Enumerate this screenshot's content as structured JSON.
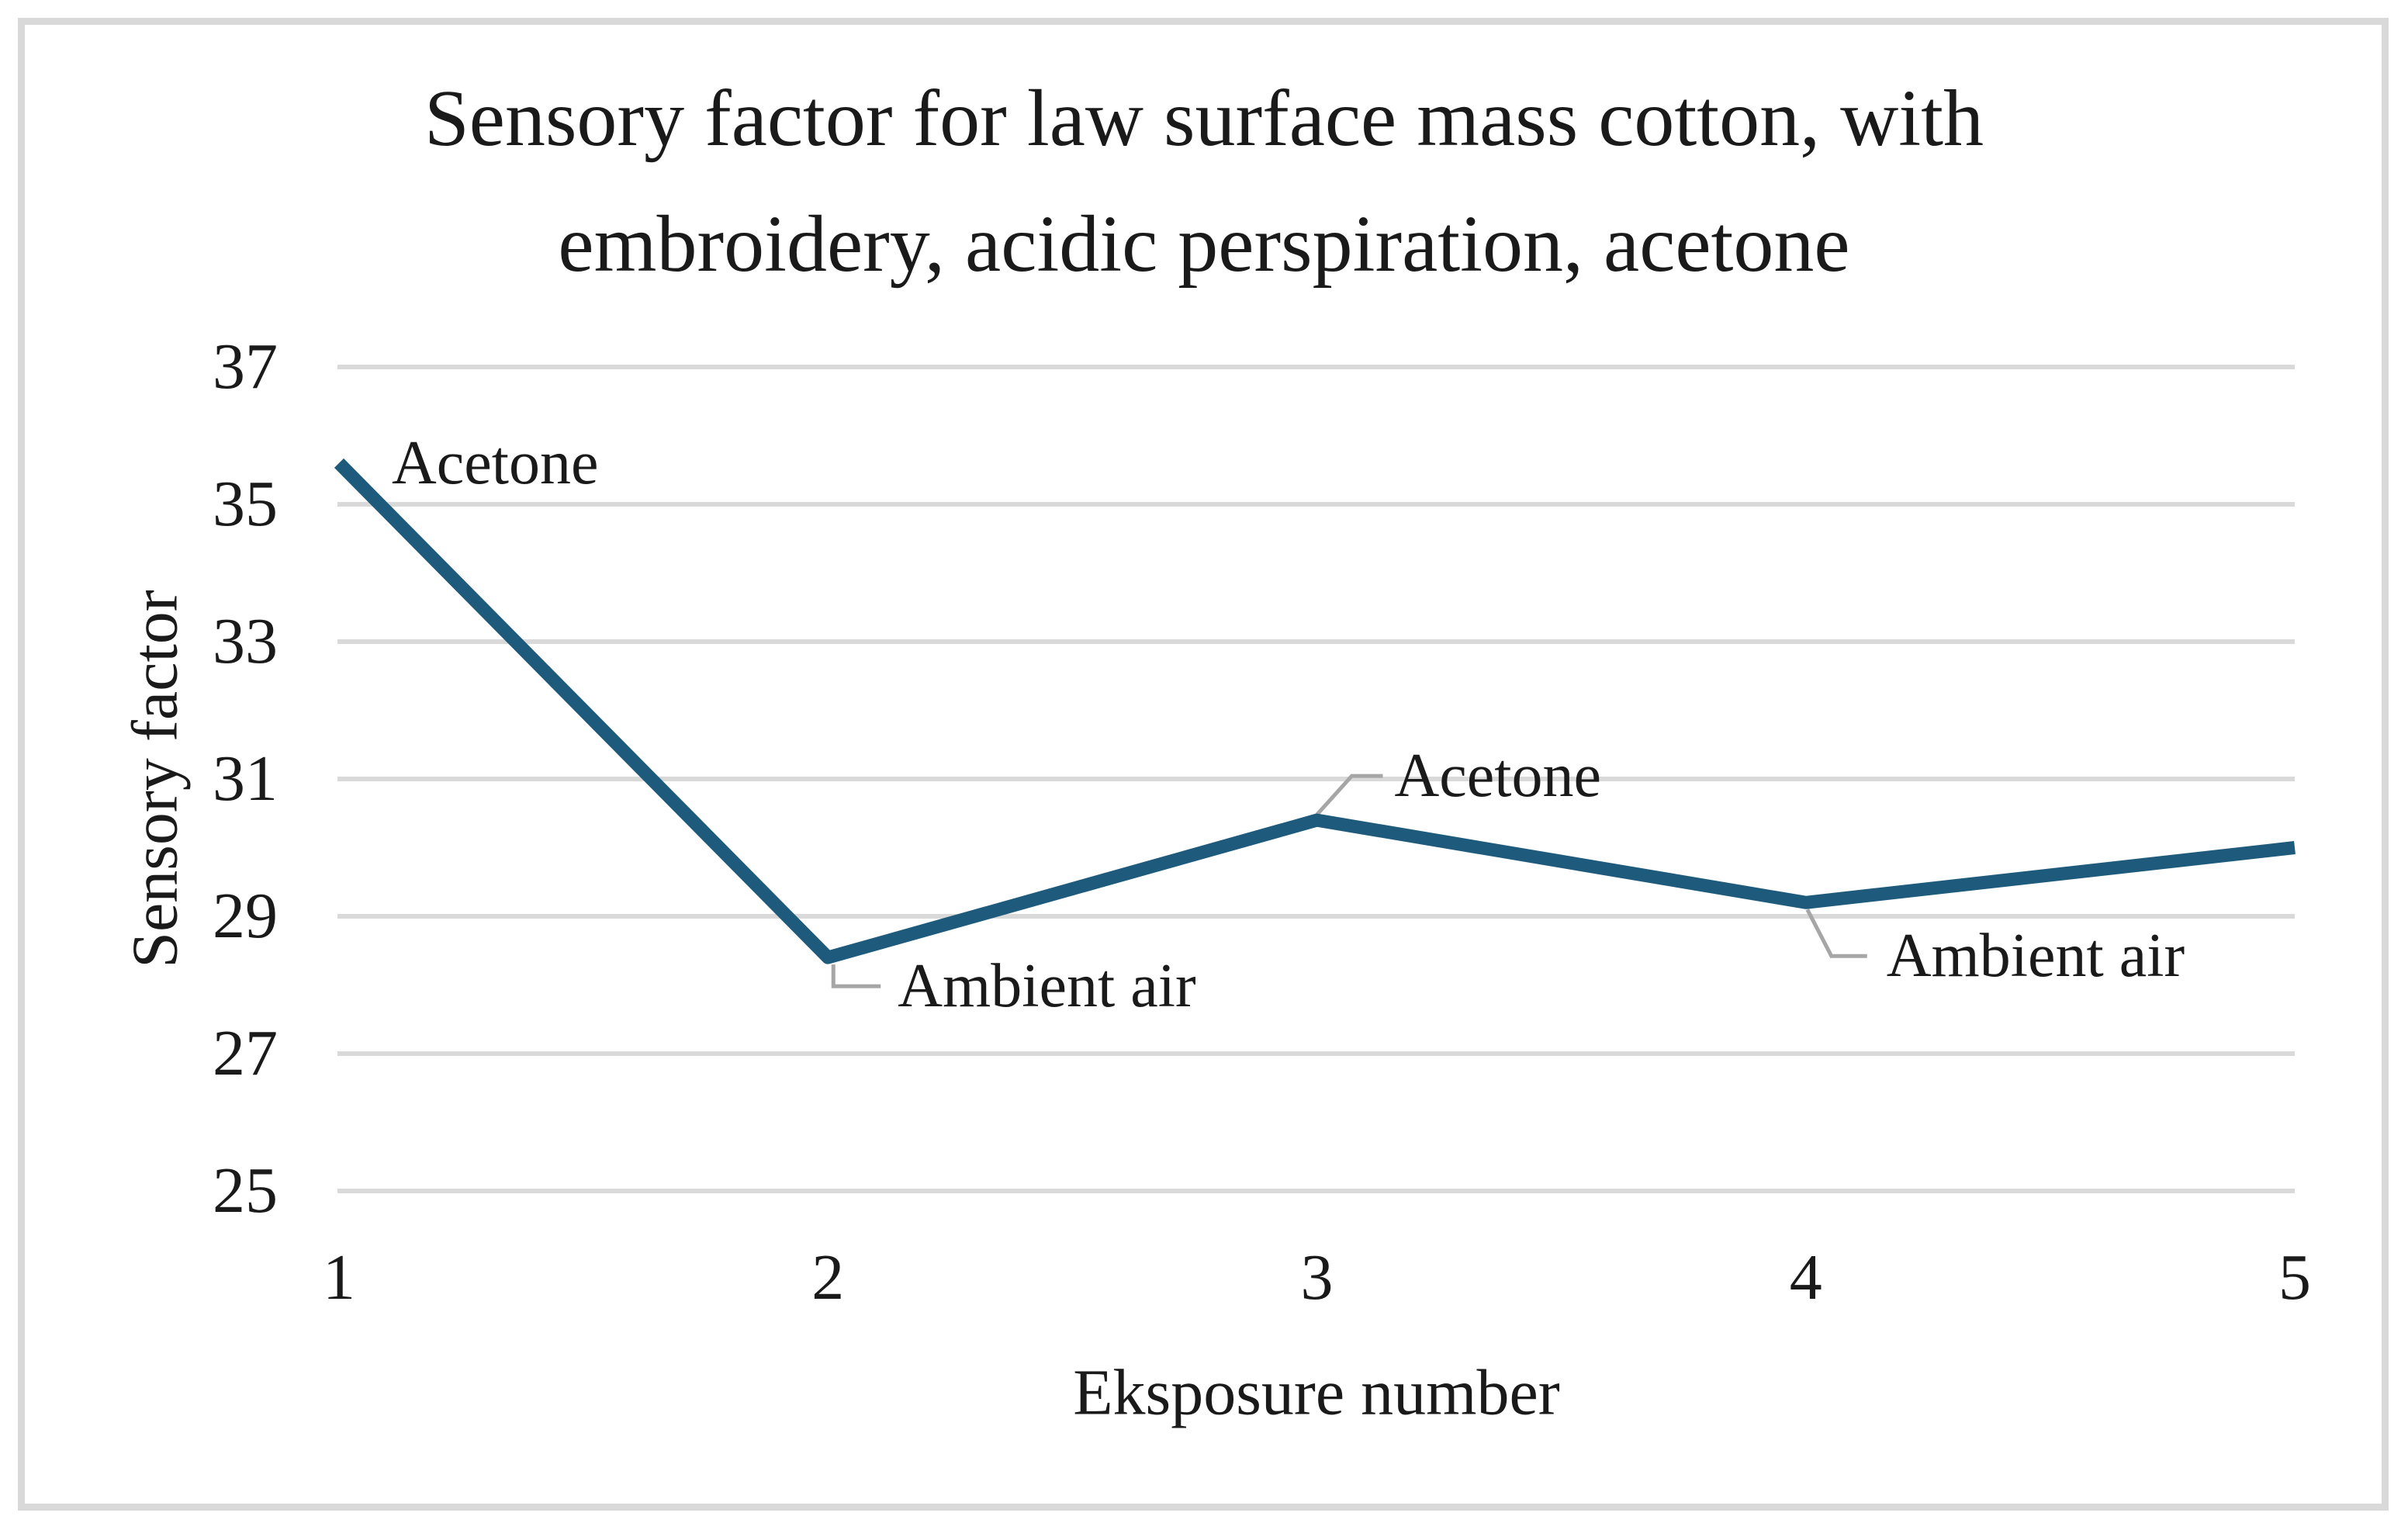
{
  "chart_data": {
    "type": "line",
    "title": "Sensory factor for law surface mass cotton, with embroidery, acidic perspiration, acetone",
    "title_lines": [
      "Sensory factor for law surface mass cotton, with",
      "embroidery, acidic perspiration, acetone"
    ],
    "xlabel": "Eksposure number",
    "ylabel": "Sensory factor",
    "categories": [
      "1",
      "2",
      "3",
      "4",
      "5"
    ],
    "values": [
      35.6,
      28.4,
      30.4,
      29.2,
      30.0
    ],
    "ylim": [
      25,
      37
    ],
    "yticks": [
      "37",
      "35",
      "33",
      "31",
      "29",
      "27",
      "25"
    ],
    "grid": "horizontal-only",
    "legend_position": "none",
    "annotations": [
      {
        "x": 1,
        "y": 35.6,
        "label": "Acetone",
        "callout": false
      },
      {
        "x": 2,
        "y": 28.4,
        "label": "Ambient air",
        "callout": true
      },
      {
        "x": 3,
        "y": 30.4,
        "label": "Acetone",
        "callout": true
      },
      {
        "x": 4,
        "y": 29.2,
        "label": "Ambient air",
        "callout": true
      }
    ],
    "colors": {
      "line": "#1E5A7C",
      "gridline": "#D9D9D9",
      "callout": "#A6A6A6",
      "text": "#1A1A1A",
      "frame_border": "#D9D9D9",
      "background": "#FFFFFF"
    }
  }
}
